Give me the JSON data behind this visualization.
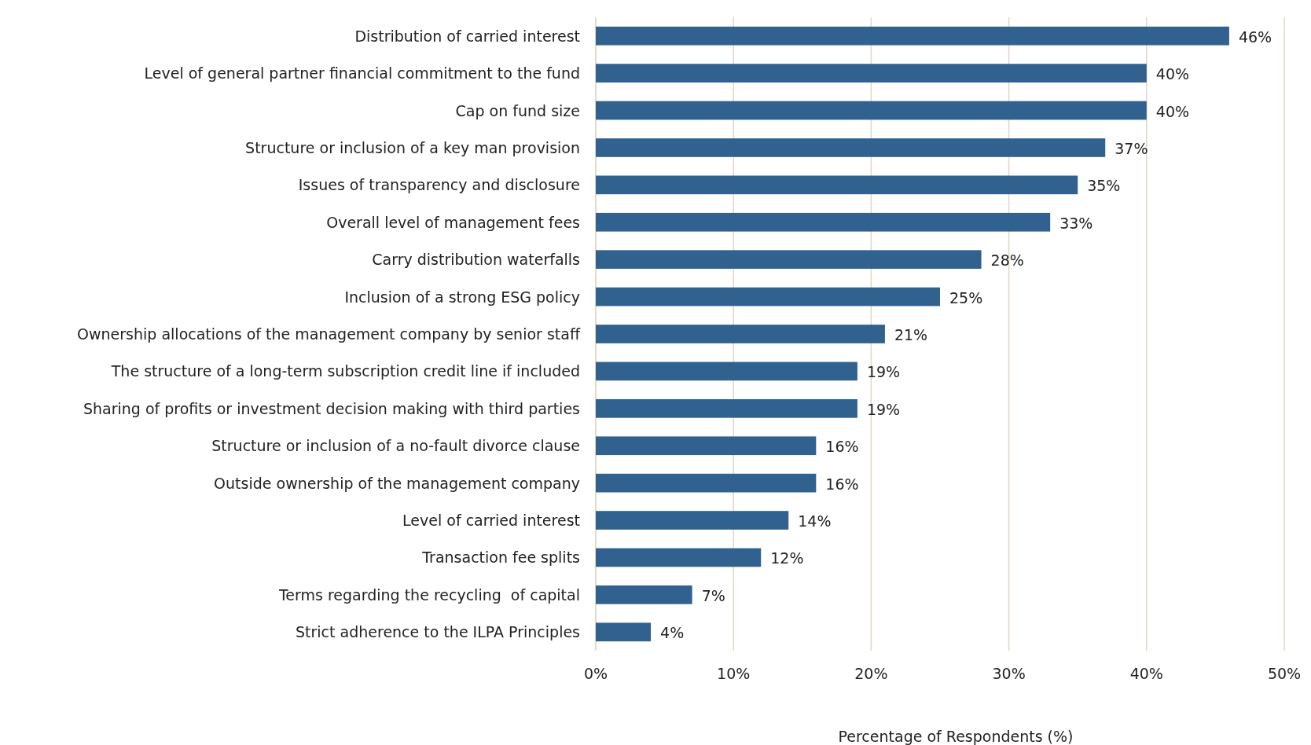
{
  "chart_data": {
    "type": "bar",
    "orientation": "horizontal",
    "xlabel": "Percentage of Respondents (%)",
    "categories": [
      "Distribution of carried interest",
      "Level of general partner financial commitment to the fund",
      "Cap on fund size",
      "Structure or inclusion of a key man provision",
      "Issues of transparency and disclosure",
      "Overall level of management fees",
      "Carry distribution waterfalls",
      "Inclusion of a strong ESG policy",
      "Ownership allocations of the management company by senior staff",
      "The structure of a long-term subscription credit line if included",
      "Sharing of profits or investment decision making with third parties",
      "Structure or inclusion of a no-fault divorce clause",
      "Outside ownership of the management company",
      "Level of carried interest",
      "Transaction fee splits",
      "Terms regarding the recycling  of capital",
      "Strict adherence to the ILPA Principles"
    ],
    "values": [
      46,
      40,
      40,
      37,
      35,
      33,
      28,
      25,
      21,
      19,
      19,
      16,
      16,
      14,
      12,
      7,
      4
    ],
    "value_labels": [
      "46%",
      "40%",
      "40%",
      "37%",
      "35%",
      "33%",
      "28%",
      "25%",
      "21%",
      "19%",
      "19%",
      "16%",
      "16%",
      "14%",
      "12%",
      "7%",
      "4%"
    ],
    "color": "#31618f",
    "xlim": [
      0,
      50
    ],
    "xticks": [
      {
        "value": 0,
        "label": "0%"
      },
      {
        "value": 10,
        "label": "10%"
      },
      {
        "value": 20,
        "label": "20%"
      },
      {
        "value": 30,
        "label": "30%"
      },
      {
        "value": 40,
        "label": "40%"
      },
      {
        "value": 50,
        "label": "50%"
      }
    ],
    "grid": "x"
  }
}
